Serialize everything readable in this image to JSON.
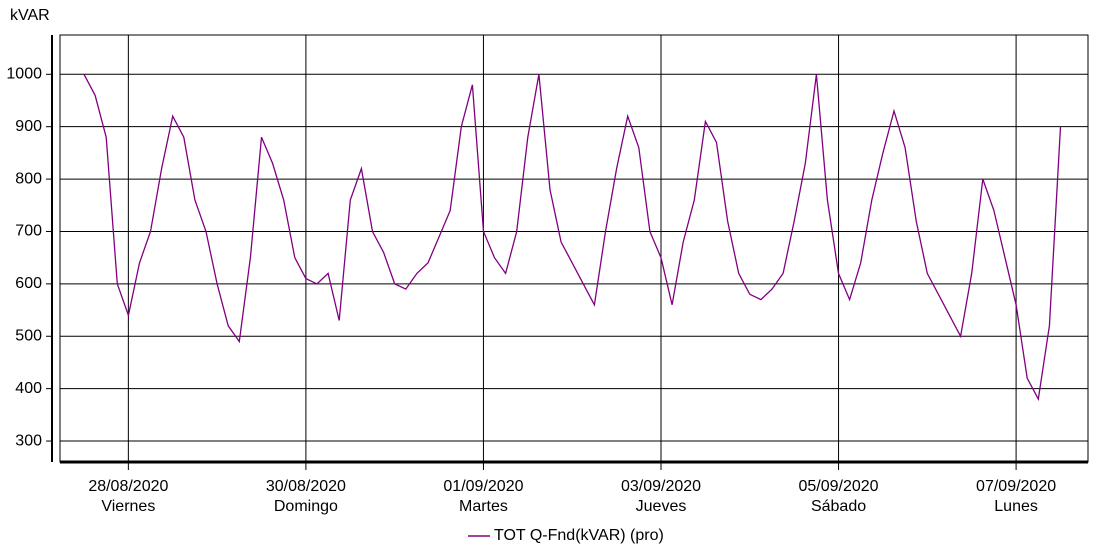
{
  "chart_data": {
    "type": "line",
    "y_label": "kVAR",
    "x": [
      0.5,
      0.625,
      0.75,
      0.875,
      1,
      1.125,
      1.25,
      1.375,
      1.5,
      1.625,
      1.75,
      1.875,
      2,
      2.125,
      2.25,
      2.375,
      2.5,
      2.625,
      2.75,
      2.875,
      3,
      3.125,
      3.25,
      3.375,
      3.5,
      3.625,
      3.75,
      3.875,
      4,
      4.125,
      4.25,
      4.375,
      4.5,
      4.625,
      4.75,
      4.875,
      5,
      5.125,
      5.25,
      5.375,
      5.5,
      5.625,
      5.75,
      5.875,
      6,
      6.125,
      6.25,
      6.375,
      6.5,
      6.625,
      6.75,
      6.875,
      7,
      7.125,
      7.25,
      7.375,
      7.5,
      7.625,
      7.75,
      7.875,
      8,
      8.125,
      8.25,
      8.375,
      8.5,
      8.625,
      8.75,
      8.875,
      9,
      9.125,
      9.25,
      9.375,
      9.5,
      9.625,
      9.75,
      9.875,
      10,
      10.125,
      10.25,
      10.375,
      10.5,
      10.625,
      10.75,
      10.875,
      11,
      11.125,
      11.25,
      11.375,
      11.5
    ],
    "series": [
      {
        "name": "TOT Q-Fnd(kVAR) (pro)",
        "color": "#800080",
        "values": [
          1000,
          960,
          880,
          600,
          540,
          640,
          700,
          820,
          920,
          880,
          760,
          700,
          600,
          520,
          490,
          650,
          880,
          830,
          760,
          650,
          610,
          600,
          620,
          530,
          760,
          820,
          700,
          660,
          600,
          590,
          620,
          640,
          690,
          740,
          900,
          980,
          700,
          650,
          620,
          700,
          880,
          1000,
          780,
          680,
          640,
          600,
          560,
          700,
          820,
          920,
          860,
          700,
          650,
          560,
          680,
          760,
          910,
          870,
          720,
          620,
          580,
          570,
          590,
          620,
          720,
          830,
          1000,
          760,
          620,
          570,
          640,
          760,
          850,
          930,
          860,
          720,
          620,
          580,
          540,
          500,
          620,
          800,
          740,
          650,
          560,
          420,
          380,
          520,
          900
        ]
      }
    ],
    "xlim": [
      0.23,
      11.81
    ],
    "xticks": [
      {
        "value": 1,
        "label": "28/08/2020"
      },
      {
        "value": 3,
        "label": "30/08/2020"
      },
      {
        "value": 5,
        "label": "01/09/2020"
      },
      {
        "value": 7,
        "label": "03/09/2020"
      },
      {
        "value": 9,
        "label": "05/09/2020"
      },
      {
        "value": 11,
        "label": "07/09/2020"
      }
    ],
    "xtick_days": [
      "Viernes",
      "Domingo",
      "Martes",
      "Jueves",
      "Sábado",
      "Lunes"
    ],
    "ylim": [
      260,
      1075
    ],
    "yticks": [
      300,
      400,
      500,
      600,
      700,
      800,
      900,
      1000
    ],
    "grid": true
  }
}
